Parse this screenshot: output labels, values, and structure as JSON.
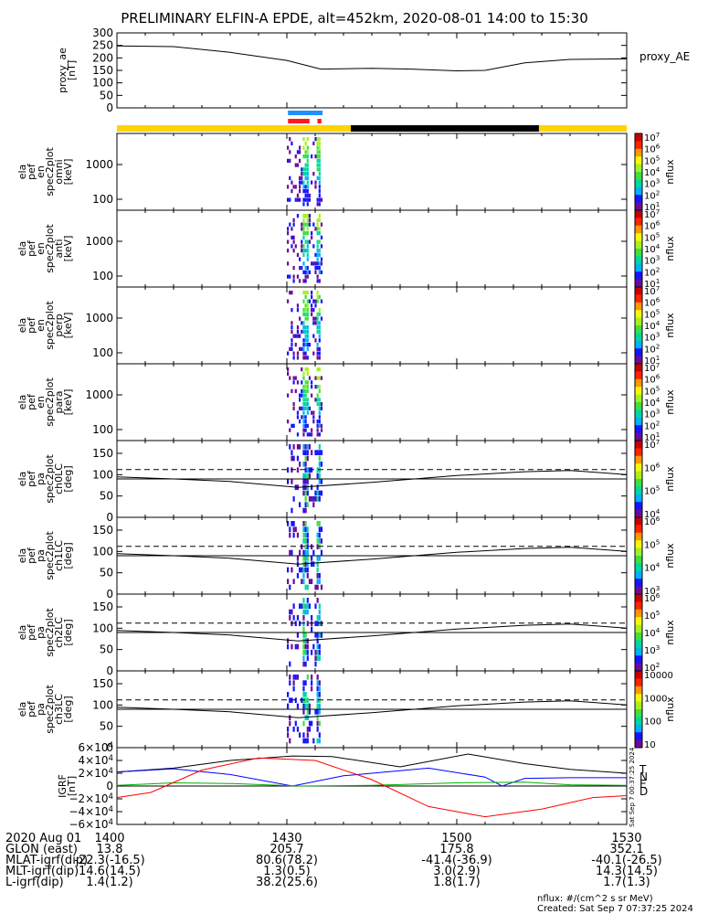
{
  "title": "PRELIMINARY ELFIN-A EPDE, alt=452km, 2020-08-01 14:00 to 15:30",
  "colors": {
    "spectrum": [
      "#6b0a9a",
      "#1414ff",
      "#00b0ff",
      "#00d8a0",
      "#3fe03f",
      "#a6f020",
      "#f7f70a",
      "#ff9900",
      "#ff2200",
      "#c80000"
    ],
    "orbit_day": "#ffd400",
    "orbit_shadow": "#000000",
    "sci_blue": "#1e90ff",
    "sci_red": "#ff1a1a",
    "comp_T": "#000000",
    "comp_N": "#0000ff",
    "comp_E": "#00b000",
    "comp_D": "#ff0000"
  },
  "chart_data": [
    {
      "type": "line",
      "name": "proxy_ae",
      "ylabel": "proxy_ae [nT]",
      "legend": "proxy_AE",
      "yticks": [
        "300",
        "250",
        "200",
        "150",
        "100",
        "50",
        "0"
      ],
      "ylim": [
        0,
        300
      ],
      "x_minutes": [
        0,
        10,
        20,
        30,
        36,
        45,
        52,
        60,
        65,
        72,
        80,
        90
      ],
      "values": [
        248,
        245,
        222,
        190,
        155,
        158,
        155,
        148,
        150,
        180,
        194,
        196
      ]
    },
    {
      "type": "heatmap",
      "name": "ela_pef_en_spec2plot_omni",
      "ylabel": "ela pef en spec2plot omni [keV]",
      "yticks": [
        "1000",
        "100"
      ],
      "colorbar": {
        "label": "nflux",
        "ticks": [
          "10^7",
          "10^6",
          "10^5",
          "10^4",
          "10^3",
          "10^2",
          "10^1"
        ]
      }
    },
    {
      "type": "heatmap",
      "name": "ela_pef_en_spec2plot_anti",
      "ylabel": "ela pef en spec2plot anti [keV]",
      "yticks": [
        "1000",
        "100"
      ],
      "colorbar": {
        "label": "nflux",
        "ticks": [
          "10^7",
          "10^6",
          "10^5",
          "10^4",
          "10^3",
          "10^2",
          "10^1"
        ]
      }
    },
    {
      "type": "heatmap",
      "name": "ela_pef_en_spec2plot_perp",
      "ylabel": "ela pef en spec2plot perp [keV]",
      "yticks": [
        "1000",
        "100"
      ],
      "colorbar": {
        "label": "nflux",
        "ticks": [
          "10^7",
          "10^6",
          "10^5",
          "10^4",
          "10^3",
          "10^2",
          "10^1"
        ]
      }
    },
    {
      "type": "heatmap",
      "name": "ela_pef_en_spec2plot_para",
      "ylabel": "ela pef en spec2plot para [keV]",
      "yticks": [
        "1000",
        "100"
      ],
      "colorbar": {
        "label": "nflux",
        "ticks": [
          "10^7",
          "10^6",
          "10^5",
          "10^4",
          "10^3",
          "10^2",
          "10^1"
        ]
      }
    },
    {
      "type": "heatmap",
      "name": "ela_pef_pa_spec2plot_ch0LC",
      "ylabel": "ela pef pa spec2plot ch0LC [deg]",
      "yticks": [
        "150",
        "100",
        "50",
        "0"
      ],
      "colorbar": {
        "label": "nflux",
        "ticks": [
          "10^7",
          "10^6",
          "10^5",
          "10^4"
        ]
      }
    },
    {
      "type": "heatmap",
      "name": "ela_pef_pa_spec2plot_ch1LC",
      "ylabel": "ela pef pa spec2plot ch1LC [deg]",
      "yticks": [
        "150",
        "100",
        "50",
        "0"
      ],
      "colorbar": {
        "label": "nflux",
        "ticks": [
          "10^6",
          "10^5",
          "10^4",
          "10^3"
        ]
      }
    },
    {
      "type": "heatmap",
      "name": "ela_pef_pa_spec2plot_ch2LC",
      "ylabel": "ela pef pa spec2plot ch2LC [deg]",
      "yticks": [
        "150",
        "100",
        "50",
        "0"
      ],
      "colorbar": {
        "label": "nflux",
        "ticks": [
          "10^6",
          "10^5",
          "10^4",
          "10^3",
          "10^2"
        ]
      }
    },
    {
      "type": "heatmap",
      "name": "ela_pef_pa_spec2plot_ch3LC",
      "ylabel": "ela pef pa spec2plot ch3LC [deg]",
      "yticks": [
        "150",
        "100",
        "50",
        "0"
      ],
      "colorbar": {
        "label": "nflux",
        "ticks": [
          "10000",
          "1000",
          "100",
          "10"
        ]
      }
    },
    {
      "type": "line",
      "name": "IGRF",
      "ylabel": "IGRF [nT]",
      "yticks": [
        "6×10^4",
        "4×10^4",
        "2×10^4",
        "0",
        "−2×10^4",
        "−4×10^4",
        "−6×10^4"
      ],
      "ylim": [
        -60000,
        60000
      ],
      "series": [
        {
          "name": "T",
          "x_minutes": [
            0,
            10,
            20,
            31,
            38,
            50,
            62,
            72,
            80,
            90
          ],
          "values": [
            22000,
            28000,
            40000,
            47000,
            46000,
            30000,
            50000,
            35000,
            26000,
            20000
          ]
        },
        {
          "name": "N",
          "x_minutes": [
            0,
            10,
            20,
            31,
            40,
            55,
            65,
            68,
            72,
            80,
            90
          ],
          "values": [
            22000,
            27000,
            18000,
            0,
            16000,
            28000,
            14000,
            0,
            12000,
            13000,
            13000
          ]
        },
        {
          "name": "E",
          "x_minutes": [
            0,
            10,
            20,
            32,
            45,
            60,
            72,
            80,
            90
          ],
          "values": [
            1000,
            5000,
            4000,
            0,
            1000,
            5000,
            6000,
            2000,
            1000
          ]
        },
        {
          "name": "D",
          "x_minutes": [
            0,
            6,
            15,
            25,
            35,
            45,
            55,
            65,
            75,
            84,
            90
          ],
          "values": [
            -18000,
            -10000,
            25000,
            44000,
            40000,
            10000,
            -32000,
            -48000,
            -36000,
            -18000,
            -15000
          ]
        }
      ]
    }
  ],
  "xaxis": {
    "row_labels": [
      "2020 Aug 01",
      "GLON (east)",
      "MLAT-igrf(dip)",
      "MLT-igrf(dip)",
      "L-igrf(dip)"
    ],
    "columns": [
      {
        "values": [
          "1400",
          "13.8",
          "-22.3(-16.5)",
          "14.6(14.5)",
          "1.4(1.2)"
        ]
      },
      {
        "values": [
          "1430",
          "205.7",
          "80.6(78.2)",
          "1.3(0.5)",
          "38.2(25.6)"
        ]
      },
      {
        "values": [
          "1500",
          "175.8",
          "-41.4(-36.9)",
          "3.0(2.9)",
          "1.8(1.7)"
        ]
      },
      {
        "values": [
          "1530",
          "352.1",
          "-40.1(-26.5)",
          "14.3(14.5)",
          "1.7(1.3)"
        ]
      }
    ]
  },
  "footer": {
    "units": "nflux: #/(cm^2 s sr MeV)",
    "created": "Created: Sat Sep  7 07:37:25 2024",
    "side_stamp": "Sat Sep  7 00:37:25 2024"
  }
}
